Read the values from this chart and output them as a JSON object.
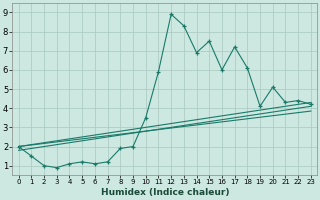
{
  "xlabel": "Humidex (Indice chaleur)",
  "ylabel": "",
  "bg_color": "#cce8e0",
  "grid_color": "#aac8c0",
  "line_color": "#1a7a6a",
  "xlim": [
    -0.5,
    23.5
  ],
  "ylim": [
    0.5,
    9.5
  ],
  "xticks": [
    0,
    1,
    2,
    3,
    4,
    5,
    6,
    7,
    8,
    9,
    10,
    11,
    12,
    13,
    14,
    15,
    16,
    17,
    18,
    19,
    20,
    21,
    22,
    23
  ],
  "yticks": [
    1,
    2,
    3,
    4,
    5,
    6,
    7,
    8,
    9
  ],
  "line1_x": [
    0,
    1,
    2,
    3,
    4,
    5,
    6,
    7,
    8,
    9,
    10,
    11,
    12,
    13,
    14,
    15,
    16,
    17,
    18,
    19,
    20,
    21,
    22,
    23
  ],
  "line1_y": [
    2.0,
    1.5,
    1.0,
    0.9,
    1.1,
    1.2,
    1.1,
    1.2,
    1.9,
    2.0,
    3.5,
    5.9,
    8.9,
    8.3,
    6.9,
    7.5,
    6.0,
    7.2,
    6.1,
    4.1,
    5.1,
    4.3,
    4.4,
    4.2
  ],
  "line2_x": [
    0,
    23
  ],
  "line2_y": [
    2.0,
    4.3
  ],
  "line3_x": [
    0,
    23
  ],
  "line3_y": [
    1.8,
    4.1
  ],
  "line4_x": [
    0,
    23
  ],
  "line4_y": [
    2.0,
    3.85
  ]
}
